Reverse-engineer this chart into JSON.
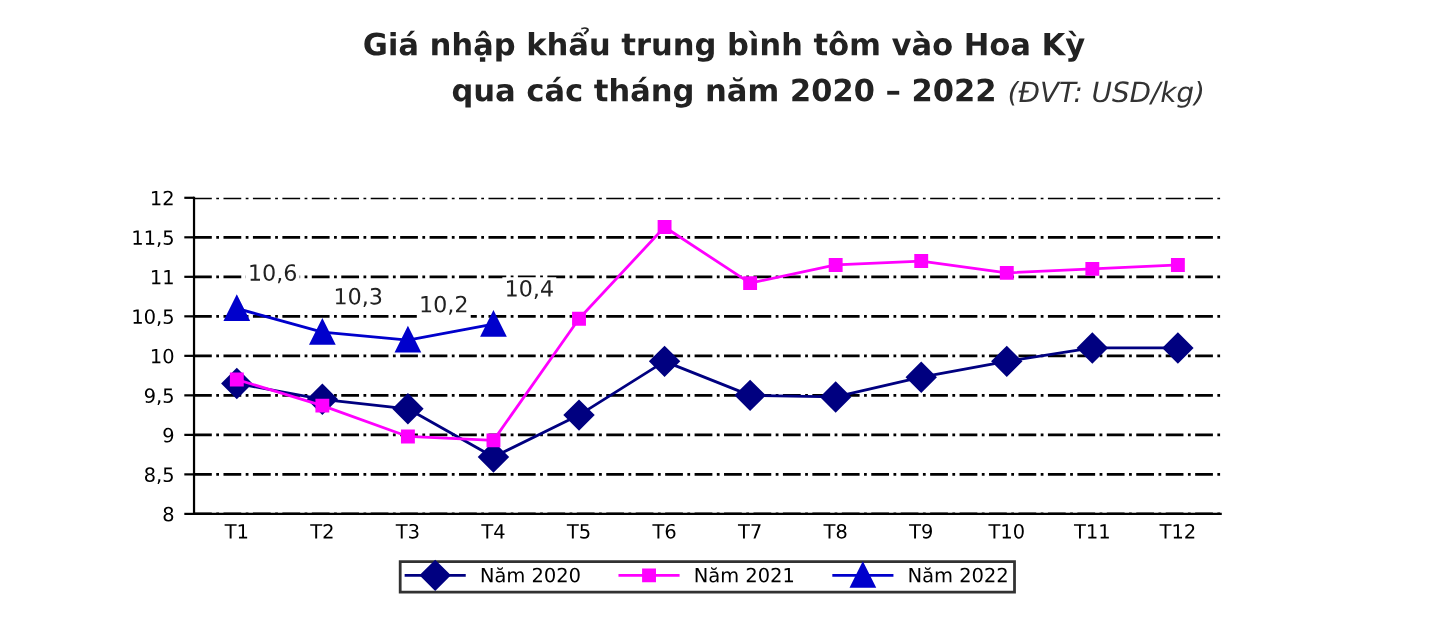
{
  "chart_data": {
    "type": "line",
    "title": "Giá nhập khẩu trung bình tôm vào Hoa Kỳ\nqua các tháng năm 2020 – 2022",
    "subtitle": "(ĐVT: USD/kg)",
    "categories": [
      "T1",
      "T2",
      "T3",
      "T4",
      "T5",
      "T6",
      "T7",
      "T8",
      "T9",
      "T10",
      "T11",
      "T12"
    ],
    "series": [
      {
        "name": "Năm 2020",
        "color": "#000080",
        "marker": "diamond",
        "values": [
          9.65,
          9.45,
          9.33,
          8.72,
          9.25,
          9.93,
          9.5,
          9.48,
          9.73,
          9.93,
          10.1,
          10.1
        ]
      },
      {
        "name": "Năm 2021",
        "color": "#ff00ff",
        "marker": "square",
        "values": [
          9.7,
          9.37,
          8.98,
          8.93,
          10.47,
          11.63,
          10.92,
          11.15,
          11.2,
          11.05,
          11.1,
          11.15
        ]
      },
      {
        "name": "Năm 2022",
        "color": "#0000cc",
        "marker": "triangle",
        "values": [
          10.6,
          10.3,
          10.2,
          10.4,
          null,
          null,
          null,
          null,
          null,
          null,
          null,
          null
        ],
        "value_labels": [
          "10,6",
          "10,3",
          "10,2",
          "10,4",
          null,
          null,
          null,
          null,
          null,
          null,
          null,
          null
        ]
      }
    ],
    "ylim": [
      8,
      12
    ],
    "yticks": [
      8,
      {
        "value": 8.5,
        "label": "8,5"
      },
      9,
      {
        "value": 9.5,
        "label": "9,5"
      },
      10,
      {
        "value": 10.5,
        "label": "10,5"
      },
      11,
      {
        "value": 11.5,
        "label": "11,5"
      },
      12
    ],
    "grid": "y",
    "legend": "bottom",
    "line_style": "solid"
  }
}
